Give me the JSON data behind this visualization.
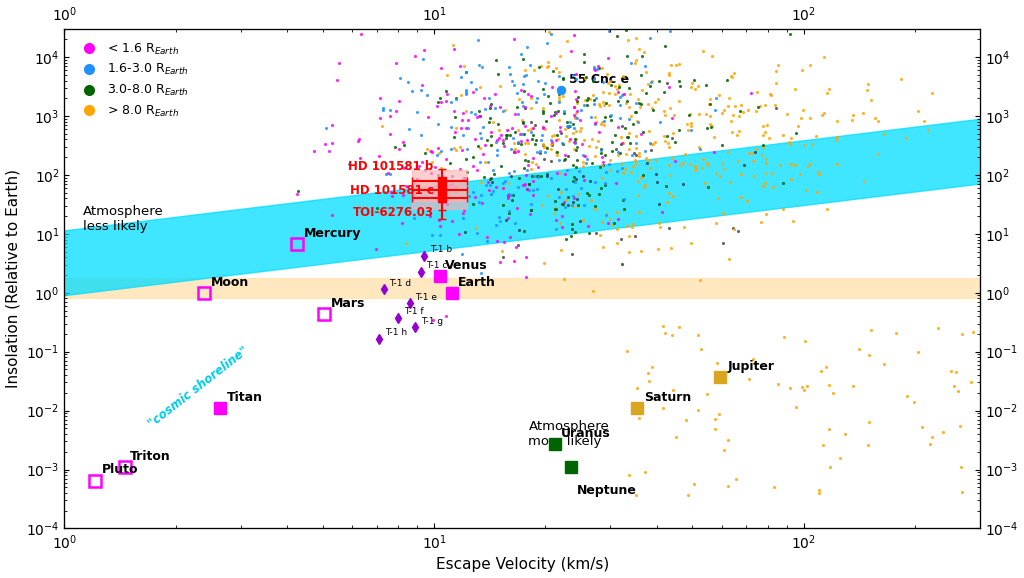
{
  "xlabel": "Escape Velocity (km/s)",
  "ylabel": "Insolation (Relative to Earth)",
  "xlim": [
    1,
    300
  ],
  "ylim": [
    0.0001,
    30000
  ],
  "solar_system": [
    {
      "name": "Mercury",
      "vesc": 4.25,
      "ins": 6.7,
      "color": "#FF00FF",
      "filled": false
    },
    {
      "name": "Venus",
      "vesc": 10.36,
      "ins": 1.91,
      "color": "#FF00FF",
      "filled": true
    },
    {
      "name": "Earth",
      "vesc": 11.19,
      "ins": 1.0,
      "color": "#FF00FF",
      "filled": true
    },
    {
      "name": "Moon",
      "vesc": 2.38,
      "ins": 1.0,
      "color": "#FF00FF",
      "filled": false
    },
    {
      "name": "Mars",
      "vesc": 5.03,
      "ins": 0.43,
      "color": "#FF00FF",
      "filled": false
    },
    {
      "name": "Titan",
      "vesc": 2.64,
      "ins": 0.011,
      "color": "#FF00FF",
      "filled": true
    },
    {
      "name": "Triton",
      "vesc": 1.455,
      "ins": 0.0011,
      "color": "#FF00FF",
      "filled": false
    },
    {
      "name": "Pluto",
      "vesc": 1.21,
      "ins": 0.00065,
      "color": "#FF00FF",
      "filled": false
    },
    {
      "name": "Jupiter",
      "vesc": 59.5,
      "ins": 0.037,
      "color": "#DAA520",
      "filled": true
    },
    {
      "name": "Saturn",
      "vesc": 35.5,
      "ins": 0.011,
      "color": "#DAA520",
      "filled": true
    },
    {
      "name": "Uranus",
      "vesc": 21.3,
      "ins": 0.0027,
      "color": "#006400",
      "filled": true
    },
    {
      "name": "Neptune",
      "vesc": 23.5,
      "ins": 0.0011,
      "color": "#006400",
      "filled": true
    }
  ],
  "trappist1": [
    {
      "name": "T-1 b",
      "vesc": 9.4,
      "ins": 4.25
    },
    {
      "name": "T-1 c",
      "vesc": 9.2,
      "ins": 2.28
    },
    {
      "name": "T-1 d",
      "vesc": 7.3,
      "ins": 1.14
    },
    {
      "name": "T-1 e",
      "vesc": 8.6,
      "ins": 0.66
    },
    {
      "name": "T-1 f",
      "vesc": 8.0,
      "ins": 0.38
    },
    {
      "name": "T-1 g",
      "vesc": 8.9,
      "ins": 0.258
    },
    {
      "name": "T-1 h",
      "vesc": 7.1,
      "ins": 0.165
    }
  ],
  "hd101581": [
    {
      "name": "HD 101581 b",
      "vesc": 10.5,
      "ins": 80.0,
      "ins_lo": 45.0,
      "ins_hi": 45.0,
      "vesc_lo": 1.8,
      "vesc_hi": 1.8
    },
    {
      "name": "HD 101581 c",
      "vesc": 10.5,
      "ins": 55.0,
      "ins_lo": 30.0,
      "ins_hi": 30.0,
      "vesc_lo": 1.8,
      "vesc_hi": 1.8
    },
    {
      "name": "TOI-6276.03",
      "vesc": 10.5,
      "ins": 40.0,
      "ins_lo": 22.0,
      "ins_hi": 22.0,
      "vesc_lo": 1.8,
      "vesc_hi": 1.8
    }
  ],
  "55cnce": {
    "name": "55 Cnc e",
    "vesc": 22.0,
    "ins": 2800.0
  },
  "cs_slope": 0.765,
  "cs_intercept": 0.5,
  "cs_halfwidth_dex": 0.55,
  "cs_color": "#00DDFF",
  "hz_ins_lo": 0.82,
  "hz_ins_hi": 1.8,
  "hz_color": "#FFE4B5",
  "background": "white",
  "legend_labels": [
    "< 1.6 R$_{Earth}$",
    "1.6-3.0 R$_{Earth}$",
    "3.0-8.0 R$_{Earth}$",
    "> 8.0 R$_{Earth}$"
  ],
  "legend_colors": [
    "#FF00FF",
    "#1E90FF",
    "#006400",
    "#FFA500"
  ]
}
